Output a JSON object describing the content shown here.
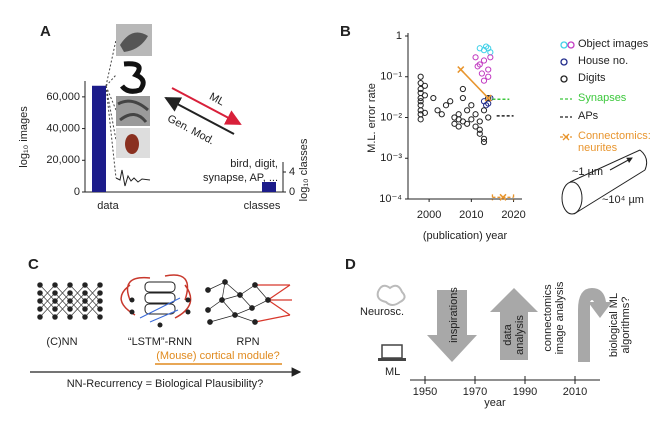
{
  "chart_data": [
    {
      "type": "bar",
      "panel_label": "A",
      "categories": [
        "data",
        "classes"
      ],
      "series": [
        {
          "values": [
            67000,
            null
          ],
          "color": "#1c1c8a"
        },
        {
          "values": [
            null,
            2
          ],
          "color": "#1c1c8a",
          "axis": "y2"
        }
      ],
      "ylabel": "log₁₀ images",
      "y2label": "log₁₀ classes",
      "ylim": [
        0,
        70000
      ],
      "yticks": [
        0,
        {
          "value": 20000,
          "label": "20,000"
        },
        {
          "value": 40000,
          "label": "40,000"
        },
        {
          "value": 60000,
          "label": "60,000"
        }
      ],
      "y2lim": [
        0,
        6
      ],
      "y2ticks": [
        0,
        4
      ],
      "annotations": {
        "ml": "ML",
        "gen_mod": "Gen. Mod.",
        "classes_note": [
          "bird, digit,",
          "synapse, AP, ..."
        ]
      }
    },
    {
      "type": "scatter",
      "panel_label": "B",
      "log_y": true,
      "ylabel": "M.L. error rate",
      "xlabel": "(publication) year",
      "xlim": [
        1995,
        2022
      ],
      "xticks": [
        2000,
        2010,
        2020
      ],
      "ylim": [
        0.0001,
        1
      ],
      "yticks": [
        {
          "value": 0.0001,
          "label": "10⁻⁴"
        },
        {
          "value": 0.001,
          "label": "10⁻³"
        },
        {
          "value": 0.01,
          "label": "10⁻²"
        },
        {
          "value": 0.1,
          "label": "10⁻¹"
        },
        1
      ],
      "series": [
        {
          "name": "Object images",
          "marker": "circle",
          "colors": [
            "#40d0e8",
            "#40d0e8",
            "#40d0e8",
            "#40d0e8",
            "#40d0e8",
            "#c23cc2",
            "#c23cc2",
            "#c23cc2",
            "#c23cc2",
            "#c23cc2",
            "#c23cc2",
            "#c23cc2",
            "#c23cc2",
            "#c23cc2"
          ],
          "x": [
            2012,
            2013,
            2013.5,
            2014,
            2014.5,
            2011,
            2011.5,
            2012,
            2012.5,
            2013,
            2013,
            2014,
            2014,
            2014.5
          ],
          "values": [
            0.5,
            0.45,
            0.55,
            0.5,
            0.4,
            0.3,
            0.18,
            0.2,
            0.12,
            0.25,
            0.08,
            0.15,
            0.1,
            0.3
          ]
        },
        {
          "name": "House no.",
          "marker": "circle",
          "color": "#1f2a8a",
          "x": [
            2013,
            2013.5,
            2014,
            2014.5
          ],
          "values": [
            0.025,
            0.02,
            0.022,
            0.03
          ]
        },
        {
          "name": "Digits",
          "marker": "circle",
          "color": "#222222",
          "x": [
            1998,
            1998,
            1998,
            1998,
            1998,
            1998,
            1998,
            1998,
            1998,
            1998,
            1999,
            1999,
            1999,
            2001,
            2002,
            2003,
            2004,
            2005,
            2006,
            2006,
            2007,
            2007,
            2008,
            2008,
            2008,
            2009,
            2009,
            2010,
            2010,
            2011,
            2011,
            2012,
            2012,
            2013,
            2013,
            2013,
            2014,
            2014,
            2012,
            2007
          ],
          "values": [
            0.1,
            0.07,
            0.05,
            0.04,
            0.03,
            0.025,
            0.02,
            0.015,
            0.012,
            0.009,
            0.06,
            0.035,
            0.013,
            0.03,
            0.015,
            0.012,
            0.02,
            0.025,
            0.007,
            0.01,
            0.006,
            0.012,
            0.008,
            0.03,
            0.05,
            0.007,
            0.015,
            0.009,
            0.02,
            0.006,
            0.012,
            0.005,
            0.004,
            0.003,
            0.0025,
            0.015,
            0.03,
            0.01,
            0.008,
            0.009
          ]
        },
        {
          "name": "Synapses",
          "marker": "dashed",
          "color": "#3cc83c",
          "label_colored": true,
          "x": [
            2015,
            2019
          ],
          "values": [
            0.028,
            0.028
          ]
        },
        {
          "name": "APs",
          "marker": "dashed",
          "color": "#222222",
          "x": [
            2016,
            2020
          ],
          "values": [
            0.011,
            0.011
          ]
        },
        {
          "name": "Connectomics: neurites",
          "marker": "cross",
          "color": "#e8952e",
          "label_colored": true,
          "x": [
            2007.5,
            2014,
            null,
            2017.5
          ],
          "values": [
            0.15,
            0.03,
            null,
            0.00011
          ],
          "xerr": [
            null,
            null,
            null,
            2.5
          ]
        }
      ],
      "annotations": {
        "diameter": "~1 µm",
        "length": "~10⁴ µm"
      }
    }
  ],
  "panels": {
    "C": {
      "label": "C",
      "nets": [
        "(C)NN",
        "“LSTM”-RNN",
        "RPN"
      ],
      "module": "(Mouse) cortical module?",
      "axis": "NN-Recurrency = Biological Plausibility?"
    },
    "D": {
      "label": "D",
      "neurosc": "Neurosc.",
      "ml": "ML",
      "inspirations": "inspirations",
      "data_analysis": [
        "data",
        "analysis"
      ],
      "connectomics": [
        "connectomics",
        "image analysis"
      ],
      "bio_ml": [
        "biological ML",
        "algorithms?"
      ],
      "ticks": [
        "1950",
        "1970",
        "1990",
        "2010"
      ],
      "axis_label": "year"
    }
  }
}
